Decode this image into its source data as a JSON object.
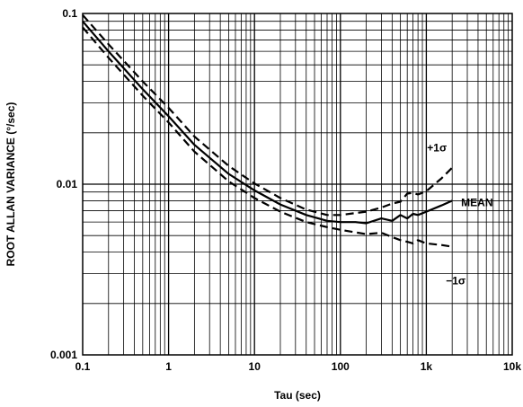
{
  "chart_data": {
    "type": "line",
    "title": "",
    "xlabel": "Tau (sec)",
    "ylabel": "ROOT ALLAN VARIANCE (°/sec)",
    "x_scale": "log",
    "y_scale": "log",
    "xlim": [
      0.1,
      10000
    ],
    "ylim": [
      0.001,
      0.1
    ],
    "grid": true,
    "legend": "none",
    "x_ticks": [
      {
        "value": 0.1,
        "label": "0.1"
      },
      {
        "value": 1,
        "label": "1"
      },
      {
        "value": 10,
        "label": "10"
      },
      {
        "value": 100,
        "label": "100"
      },
      {
        "value": 1000,
        "label": "1k"
      },
      {
        "value": 10000,
        "label": "10k"
      }
    ],
    "y_ticks": [
      {
        "value": 0.001,
        "label": "0.001"
      },
      {
        "value": 0.01,
        "label": "0.01"
      },
      {
        "value": 0.1,
        "label": "0.1"
      }
    ],
    "series": [
      {
        "name": "MEAN",
        "style": "solid",
        "x": [
          0.1,
          0.2,
          0.5,
          1,
          2,
          5,
          10,
          20,
          40,
          70,
          100,
          150,
          200,
          300,
          400,
          500,
          600,
          700,
          800,
          1000,
          1500,
          2000
        ],
        "y": [
          0.09,
          0.06,
          0.036,
          0.025,
          0.017,
          0.0115,
          0.0092,
          0.0076,
          0.0066,
          0.0061,
          0.006,
          0.006,
          0.0059,
          0.0063,
          0.0061,
          0.0066,
          0.0063,
          0.0067,
          0.0066,
          0.0069,
          0.0075,
          0.008
        ]
      },
      {
        "name": "+1σ",
        "style": "dashed",
        "x": [
          0.1,
          0.2,
          0.5,
          1,
          2,
          5,
          10,
          20,
          40,
          70,
          100,
          200,
          300,
          400,
          500,
          600,
          700,
          800,
          1000,
          1500,
          2000
        ],
        "y": [
          0.098,
          0.066,
          0.04,
          0.028,
          0.019,
          0.0128,
          0.0101,
          0.0083,
          0.0071,
          0.0066,
          0.0066,
          0.0069,
          0.0073,
          0.0077,
          0.0079,
          0.0088,
          0.0089,
          0.0087,
          0.0091,
          0.0108,
          0.0125
        ]
      },
      {
        "name": "−1σ",
        "style": "dashed",
        "x": [
          0.1,
          0.2,
          0.5,
          1,
          2,
          5,
          10,
          20,
          40,
          70,
          100,
          200,
          300,
          400,
          500,
          600,
          700,
          800,
          1000,
          1500,
          2000
        ],
        "y": [
          0.083,
          0.055,
          0.033,
          0.023,
          0.0155,
          0.0104,
          0.0083,
          0.0069,
          0.006,
          0.0056,
          0.0054,
          0.0051,
          0.0052,
          0.0049,
          0.0047,
          0.0046,
          0.0045,
          0.0047,
          0.0045,
          0.0044,
          0.0043
        ]
      }
    ]
  }
}
